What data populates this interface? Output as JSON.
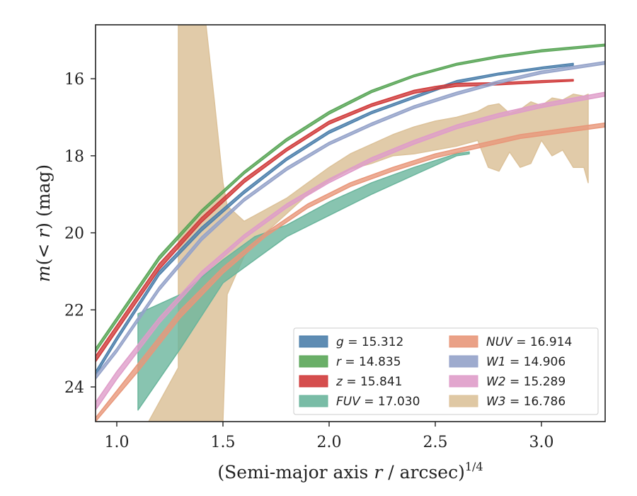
{
  "chart_data": {
    "type": "area",
    "title": "",
    "xlabel": "(Semi-major axis r / arcsec)^{1/4}",
    "ylabel": "m(< r) (mag)",
    "xlim": [
      0.9,
      3.3
    ],
    "ylim": [
      24.9,
      14.6
    ],
    "y_inverted": true,
    "grid": false,
    "legend_position": "lower-right",
    "legend_columns": 2,
    "x_ticks": [
      "1.0",
      "1.5",
      "2.0",
      "2.5",
      "3.0"
    ],
    "y_ticks": [
      "16",
      "18",
      "20",
      "22",
      "24"
    ],
    "series": [
      {
        "name": "g = 15.312",
        "color": "#4c7fab",
        "total_mag": 15.312,
        "x": [
          0.9,
          1.0,
          1.2,
          1.4,
          1.6,
          1.8,
          2.0,
          2.2,
          2.4,
          2.6,
          2.8,
          3.0,
          3.15
        ],
        "y": [
          23.6,
          22.7,
          21.0,
          19.85,
          18.9,
          18.05,
          17.35,
          16.85,
          16.45,
          16.05,
          15.85,
          15.7,
          15.6
        ],
        "y_low": [
          23.7,
          22.8,
          21.1,
          19.95,
          18.98,
          18.12,
          17.42,
          16.91,
          16.51,
          16.11,
          15.9,
          15.75,
          15.65
        ]
      },
      {
        "name": "r = 14.835",
        "color": "#5aa658",
        "total_mag": 14.835,
        "x": [
          0.9,
          1.0,
          1.2,
          1.4,
          1.6,
          1.8,
          2.0,
          2.2,
          2.4,
          2.6,
          2.8,
          3.0,
          3.3
        ],
        "y": [
          23.0,
          22.2,
          20.6,
          19.4,
          18.4,
          17.55,
          16.85,
          16.3,
          15.9,
          15.6,
          15.4,
          15.25,
          15.1
        ],
        "y_low": [
          23.1,
          22.3,
          20.7,
          19.48,
          18.47,
          17.62,
          16.92,
          16.36,
          15.95,
          15.65,
          15.45,
          15.3,
          15.15
        ]
      },
      {
        "name": "z = 15.841",
        "color": "#d03b3b",
        "total_mag": 15.841,
        "x": [
          0.9,
          1.0,
          1.2,
          1.4,
          1.6,
          1.8,
          2.0,
          2.2,
          2.4,
          2.5,
          2.6,
          2.8,
          3.0,
          3.15
        ],
        "y": [
          23.2,
          22.4,
          20.8,
          19.6,
          18.6,
          17.8,
          17.1,
          16.65,
          16.3,
          16.2,
          16.12,
          16.1,
          16.05,
          16.02
        ],
        "y_low": [
          23.35,
          22.55,
          20.95,
          19.72,
          18.7,
          17.88,
          17.18,
          16.72,
          16.38,
          16.28,
          16.2,
          16.16,
          16.1,
          16.06
        ]
      },
      {
        "name": "FUV = 17.030",
        "color": "#6ab59c",
        "total_mag": 17.03,
        "x": [
          1.1,
          1.3,
          1.5,
          1.65,
          1.8,
          2.0,
          2.2,
          2.4,
          2.6,
          2.66
        ],
        "y": [
          22.1,
          21.6,
          20.7,
          20.1,
          19.8,
          19.2,
          18.7,
          18.3,
          17.95,
          17.9
        ],
        "y_low": [
          24.6,
          23.0,
          21.3,
          20.7,
          20.1,
          19.55,
          19.0,
          18.5,
          18.0,
          17.95
        ]
      },
      {
        "name": "NUV = 16.914",
        "color": "#e8977a",
        "total_mag": 16.914,
        "x": [
          0.9,
          1.1,
          1.3,
          1.5,
          1.7,
          1.9,
          2.1,
          2.3,
          2.5,
          2.7,
          2.9,
          3.1,
          3.3
        ],
        "y": [
          24.8,
          23.4,
          22.0,
          20.9,
          20.0,
          19.25,
          18.7,
          18.3,
          17.95,
          17.7,
          17.45,
          17.3,
          17.15
        ],
        "y_low": [
          24.9,
          23.6,
          22.2,
          21.05,
          20.1,
          19.35,
          18.8,
          18.4,
          18.05,
          17.8,
          17.55,
          17.4,
          17.25
        ]
      },
      {
        "name": "W1 = 14.906",
        "color": "#94a2c9",
        "total_mag": 14.906,
        "x": [
          0.9,
          1.0,
          1.2,
          1.4,
          1.6,
          1.8,
          2.0,
          2.2,
          2.4,
          2.6,
          2.8,
          3.0,
          3.3
        ],
        "y": [
          23.7,
          23.0,
          21.4,
          20.1,
          19.1,
          18.3,
          17.65,
          17.15,
          16.7,
          16.35,
          16.05,
          15.8,
          15.55
        ],
        "y_low": [
          23.8,
          23.1,
          21.5,
          20.2,
          19.18,
          18.38,
          17.72,
          17.22,
          16.77,
          16.42,
          16.12,
          15.87,
          15.62
        ]
      },
      {
        "name": "W2 = 15.289",
        "color": "#df9cc9",
        "total_mag": 15.289,
        "x": [
          0.9,
          1.0,
          1.2,
          1.4,
          1.6,
          1.8,
          2.0,
          2.2,
          2.4,
          2.6,
          2.8,
          3.0,
          3.3
        ],
        "y": [
          24.4,
          23.6,
          22.2,
          21.0,
          20.05,
          19.25,
          18.6,
          18.05,
          17.6,
          17.2,
          16.9,
          16.65,
          16.35
        ],
        "y_low": [
          24.6,
          23.8,
          22.35,
          21.12,
          20.15,
          19.35,
          18.7,
          18.15,
          17.7,
          17.3,
          17.0,
          16.75,
          16.45
        ]
      },
      {
        "name": "W3 = 16.786",
        "color": "#dcc29a",
        "total_mag": 16.786,
        "x": [
          1.15,
          1.29,
          1.29,
          1.35,
          1.42,
          1.46,
          1.5,
          1.52,
          1.6,
          1.7,
          1.8,
          1.9,
          2.0,
          2.1,
          2.2,
          2.3,
          2.4,
          2.5,
          2.6,
          2.7,
          2.75,
          2.8,
          2.85,
          2.9,
          2.95,
          3.0,
          3.05,
          3.1,
          3.15,
          3.2,
          3.22
        ],
        "y": [
          24.9,
          23.5,
          14.6,
          14.6,
          14.6,
          16.6,
          18.7,
          19.3,
          19.7,
          19.4,
          19.1,
          18.7,
          18.3,
          17.95,
          17.7,
          17.45,
          17.25,
          17.1,
          17.0,
          16.85,
          16.7,
          16.65,
          16.9,
          16.8,
          16.6,
          16.7,
          16.5,
          16.55,
          16.4,
          16.45,
          16.4
        ],
        "y_low": [
          24.9,
          24.9,
          24.9,
          24.9,
          24.9,
          24.9,
          24.9,
          21.6,
          20.6,
          20.0,
          19.5,
          19.0,
          18.65,
          18.35,
          18.2,
          18.0,
          17.95,
          17.85,
          17.75,
          17.6,
          18.3,
          18.4,
          17.9,
          18.3,
          18.2,
          17.6,
          18.0,
          17.85,
          18.3,
          18.3,
          18.7
        ]
      }
    ]
  }
}
